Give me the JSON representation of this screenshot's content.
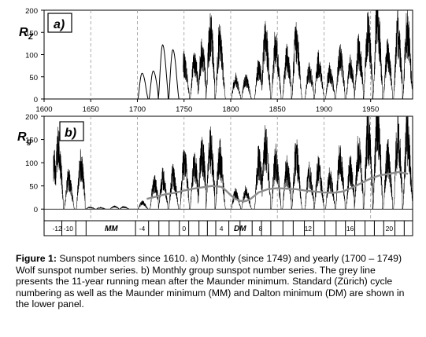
{
  "chart_data": [
    {
      "panel": "a)",
      "type": "line",
      "ylabel": "R",
      "ylabel_sub": "Z",
      "xlim": [
        1600,
        1995
      ],
      "ylim": [
        0,
        200
      ],
      "y_ticks": [
        "0",
        "50",
        "100",
        "150",
        "200"
      ],
      "x_ticks": [
        "1600",
        "1650",
        "1700",
        "1750",
        "1800",
        "1850",
        "1900",
        "1950"
      ],
      "grid": "dashed vertical lines every 50 years",
      "series": [
        {
          "color": "#000000",
          "values_description_free": true,
          "cycle_maxima": [
            {
              "year": 1705,
              "peak": 58
            },
            {
              "year": 1717,
              "peak": 63
            },
            {
              "year": 1727,
              "peak": 122
            },
            {
              "year": 1738,
              "peak": 111
            },
            {
              "year": 1750,
              "peak": 83
            },
            {
              "year": 1761,
              "peak": 86
            },
            {
              "year": 1769,
              "peak": 106
            },
            {
              "year": 1778,
              "peak": 154
            },
            {
              "year": 1788,
              "peak": 132
            },
            {
              "year": 1805,
              "peak": 47
            },
            {
              "year": 1816,
              "peak": 46
            },
            {
              "year": 1830,
              "peak": 71
            },
            {
              "year": 1837,
              "peak": 138
            },
            {
              "year": 1848,
              "peak": 124
            },
            {
              "year": 1860,
              "peak": 96
            },
            {
              "year": 1870,
              "peak": 139
            },
            {
              "year": 1884,
              "peak": 64
            },
            {
              "year": 1894,
              "peak": 85
            },
            {
              "year": 1906,
              "peak": 64
            },
            {
              "year": 1917,
              "peak": 104
            },
            {
              "year": 1928,
              "peak": 78
            },
            {
              "year": 1937,
              "peak": 114
            },
            {
              "year": 1947,
              "peak": 152
            },
            {
              "year": 1957,
              "peak": 190
            },
            {
              "year": 1968,
              "peak": 106
            },
            {
              "year": 1979,
              "peak": 155
            },
            {
              "year": 1989,
              "peak": 158
            }
          ]
        }
      ]
    },
    {
      "panel": "b)",
      "type": "line",
      "ylabel": "R",
      "ylabel_sub": "g",
      "xlim": [
        1600,
        1995
      ],
      "ylim": [
        -25,
        200
      ],
      "y_ticks": [
        "0",
        "50",
        "100",
        "150",
        "200"
      ],
      "grid": "dashed vertical lines every 50 years",
      "series": [
        {
          "color": "#000000",
          "cycle_maxima": [
            {
              "year": 1611,
              "peak": 100
            },
            {
              "year": 1615,
              "peak": 140
            },
            {
              "year": 1626,
              "peak": 70
            },
            {
              "year": 1639,
              "peak": 100
            },
            {
              "year": 1649,
              "peak": 4
            },
            {
              "year": 1660,
              "peak": 3
            },
            {
              "year": 1675,
              "peak": 6
            },
            {
              "year": 1685,
              "peak": 5
            },
            {
              "year": 1705,
              "peak": 15
            },
            {
              "year": 1718,
              "peak": 60
            },
            {
              "year": 1727,
              "peak": 70
            },
            {
              "year": 1738,
              "peak": 75
            },
            {
              "year": 1750,
              "peak": 110
            },
            {
              "year": 1761,
              "peak": 100
            },
            {
              "year": 1769,
              "peak": 130
            },
            {
              "year": 1778,
              "peak": 140
            },
            {
              "year": 1788,
              "peak": 120
            },
            {
              "year": 1805,
              "peak": 35
            },
            {
              "year": 1816,
              "peak": 40
            },
            {
              "year": 1830,
              "peak": 110
            },
            {
              "year": 1837,
              "peak": 145
            },
            {
              "year": 1848,
              "peak": 110
            },
            {
              "year": 1860,
              "peak": 90
            },
            {
              "year": 1870,
              "peak": 120
            },
            {
              "year": 1884,
              "peak": 80
            },
            {
              "year": 1894,
              "peak": 90
            },
            {
              "year": 1906,
              "peak": 70
            },
            {
              "year": 1917,
              "peak": 110
            },
            {
              "year": 1928,
              "peak": 90
            },
            {
              "year": 1937,
              "peak": 130
            },
            {
              "year": 1947,
              "peak": 170
            },
            {
              "year": 1957,
              "peak": 200
            },
            {
              "year": 1968,
              "peak": 120
            },
            {
              "year": 1979,
              "peak": 160
            },
            {
              "year": 1989,
              "peak": 165
            }
          ]
        },
        {
          "color": "#8c8c8c",
          "x": [
            1710,
            1720,
            1730,
            1740,
            1750,
            1760,
            1770,
            1780,
            1790,
            1795,
            1800,
            1805,
            1810,
            1815,
            1820,
            1825,
            1830,
            1840,
            1850,
            1860,
            1870,
            1880,
            1890,
            1900,
            1910,
            1920,
            1930,
            1940,
            1950,
            1960,
            1970,
            1980,
            1990
          ],
          "y": [
            22,
            27,
            32,
            35,
            40,
            44,
            47,
            50,
            48,
            40,
            30,
            22,
            18,
            17,
            20,
            28,
            36,
            43,
            45,
            44,
            43,
            40,
            38,
            36,
            35,
            38,
            46,
            56,
            66,
            73,
            76,
            80,
            76
          ]
        }
      ],
      "cycle_numbers": [
        "-12",
        "-10",
        "-4",
        "0",
        "4",
        "8",
        "12",
        "16",
        "20"
      ],
      "minima_labels": [
        "MM",
        "DM"
      ]
    }
  ],
  "labels": {
    "panel_a": "a)",
    "panel_b": "b)",
    "ylabel_a_main": "R",
    "ylabel_a_sub": "Z",
    "ylabel_b_main": "R",
    "ylabel_b_sub": "g",
    "mm": "MM",
    "dm": "DM"
  },
  "caption": {
    "bold": "Figure 1:",
    "text": " Sunspot numbers since 1610. a) Monthly (since 1749) and yearly (1700 – 1749) Wolf sunspot number series. b) Monthly group sunspot number series. The grey line presents the 11-year running mean after the Maunder minimum. Standard (Zürich) cycle numbering as well as the Maunder minimum (MM) and Dalton minimum (DM) are shown in the lower panel."
  }
}
